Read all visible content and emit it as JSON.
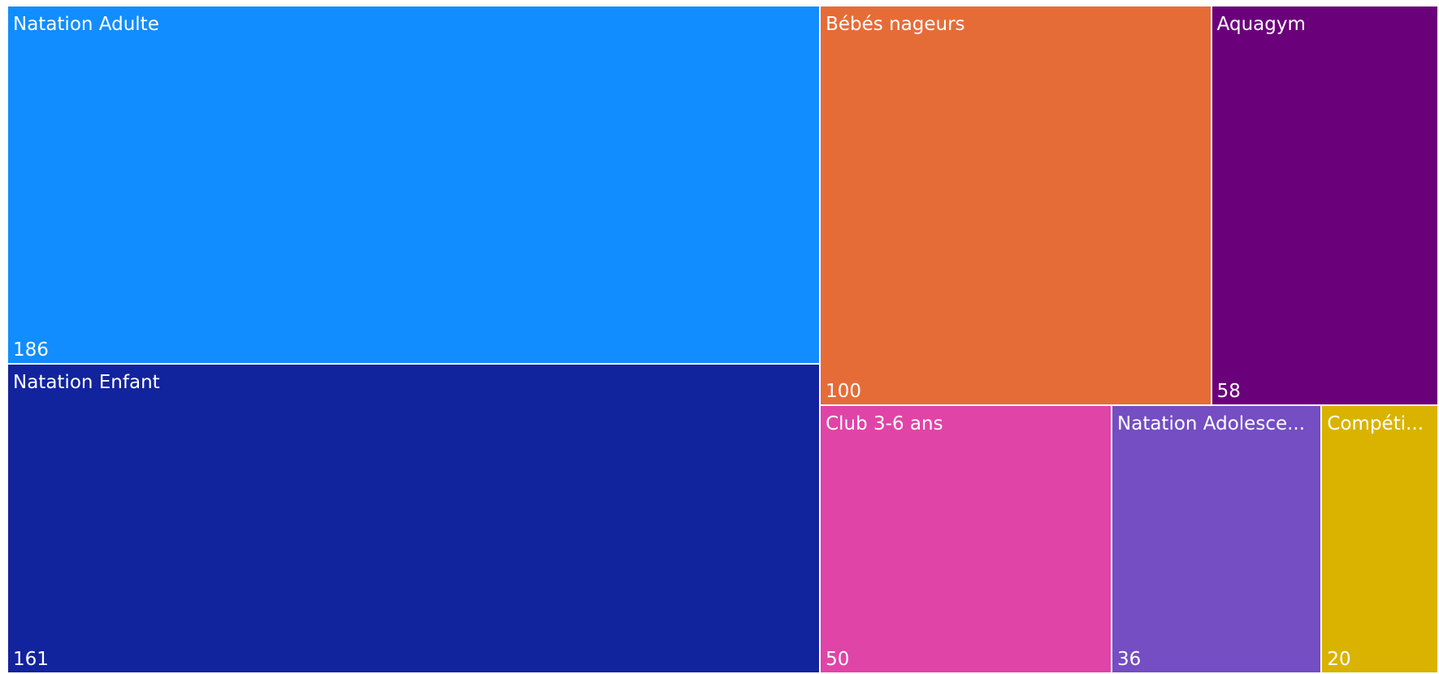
{
  "chart_data": {
    "type": "treemap",
    "categories": [
      "Natation Adulte",
      "Natation Enfant",
      "Bébés nageurs",
      "Aquagym",
      "Club 3-6 ans",
      "Natation Adolesce...",
      "Compéti..."
    ],
    "values": [
      186,
      161,
      100,
      58,
      50,
      36,
      20
    ],
    "colors": [
      "#118DFF",
      "#12239E",
      "#E66C37",
      "#6B007B",
      "#E044A7",
      "#744EC2",
      "#D9B300"
    ]
  }
}
